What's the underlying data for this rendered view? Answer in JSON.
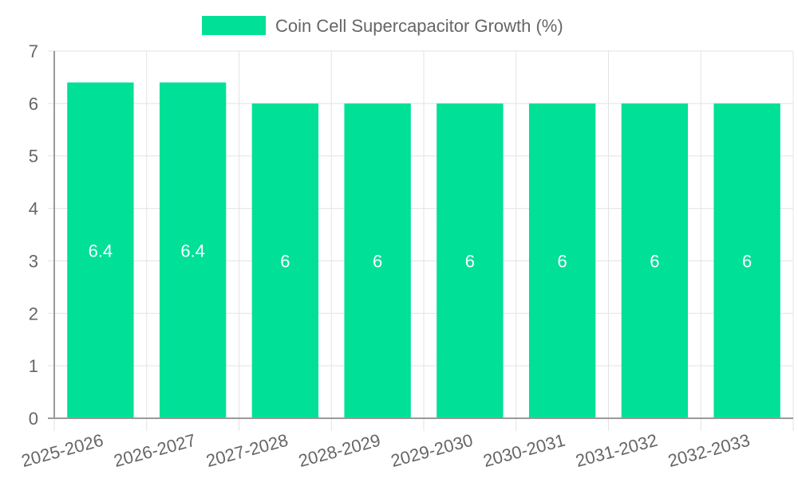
{
  "colors": {
    "bar": "#00e096",
    "grid": "#e3e3e3",
    "axis": "#9a9a9a",
    "tick_text": "#666666",
    "label_text": "#ffffff"
  },
  "chart_data": {
    "type": "bar",
    "title": "",
    "legend": {
      "label": "Coin Cell Supercapacitor Growth (%)",
      "position": "top-center"
    },
    "categories": [
      "2025-2026",
      "2026-2027",
      "2027-2028",
      "2028-2029",
      "2029-2030",
      "2030-2031",
      "2031-2032",
      "2032-2033"
    ],
    "series": [
      {
        "name": "Coin Cell Supercapacitor Growth (%)",
        "values": [
          6.4,
          6.4,
          6,
          6,
          6,
          6,
          6,
          6
        ]
      }
    ],
    "data_labels": [
      "6.4",
      "6.4",
      "6",
      "6",
      "6",
      "6",
      "6",
      "6"
    ],
    "y_ticks": [
      "0",
      "1",
      "2",
      "3",
      "4",
      "5",
      "6",
      "7"
    ],
    "xlabel": "",
    "ylabel": "",
    "ylim": [
      0,
      7
    ],
    "grid": true
  }
}
